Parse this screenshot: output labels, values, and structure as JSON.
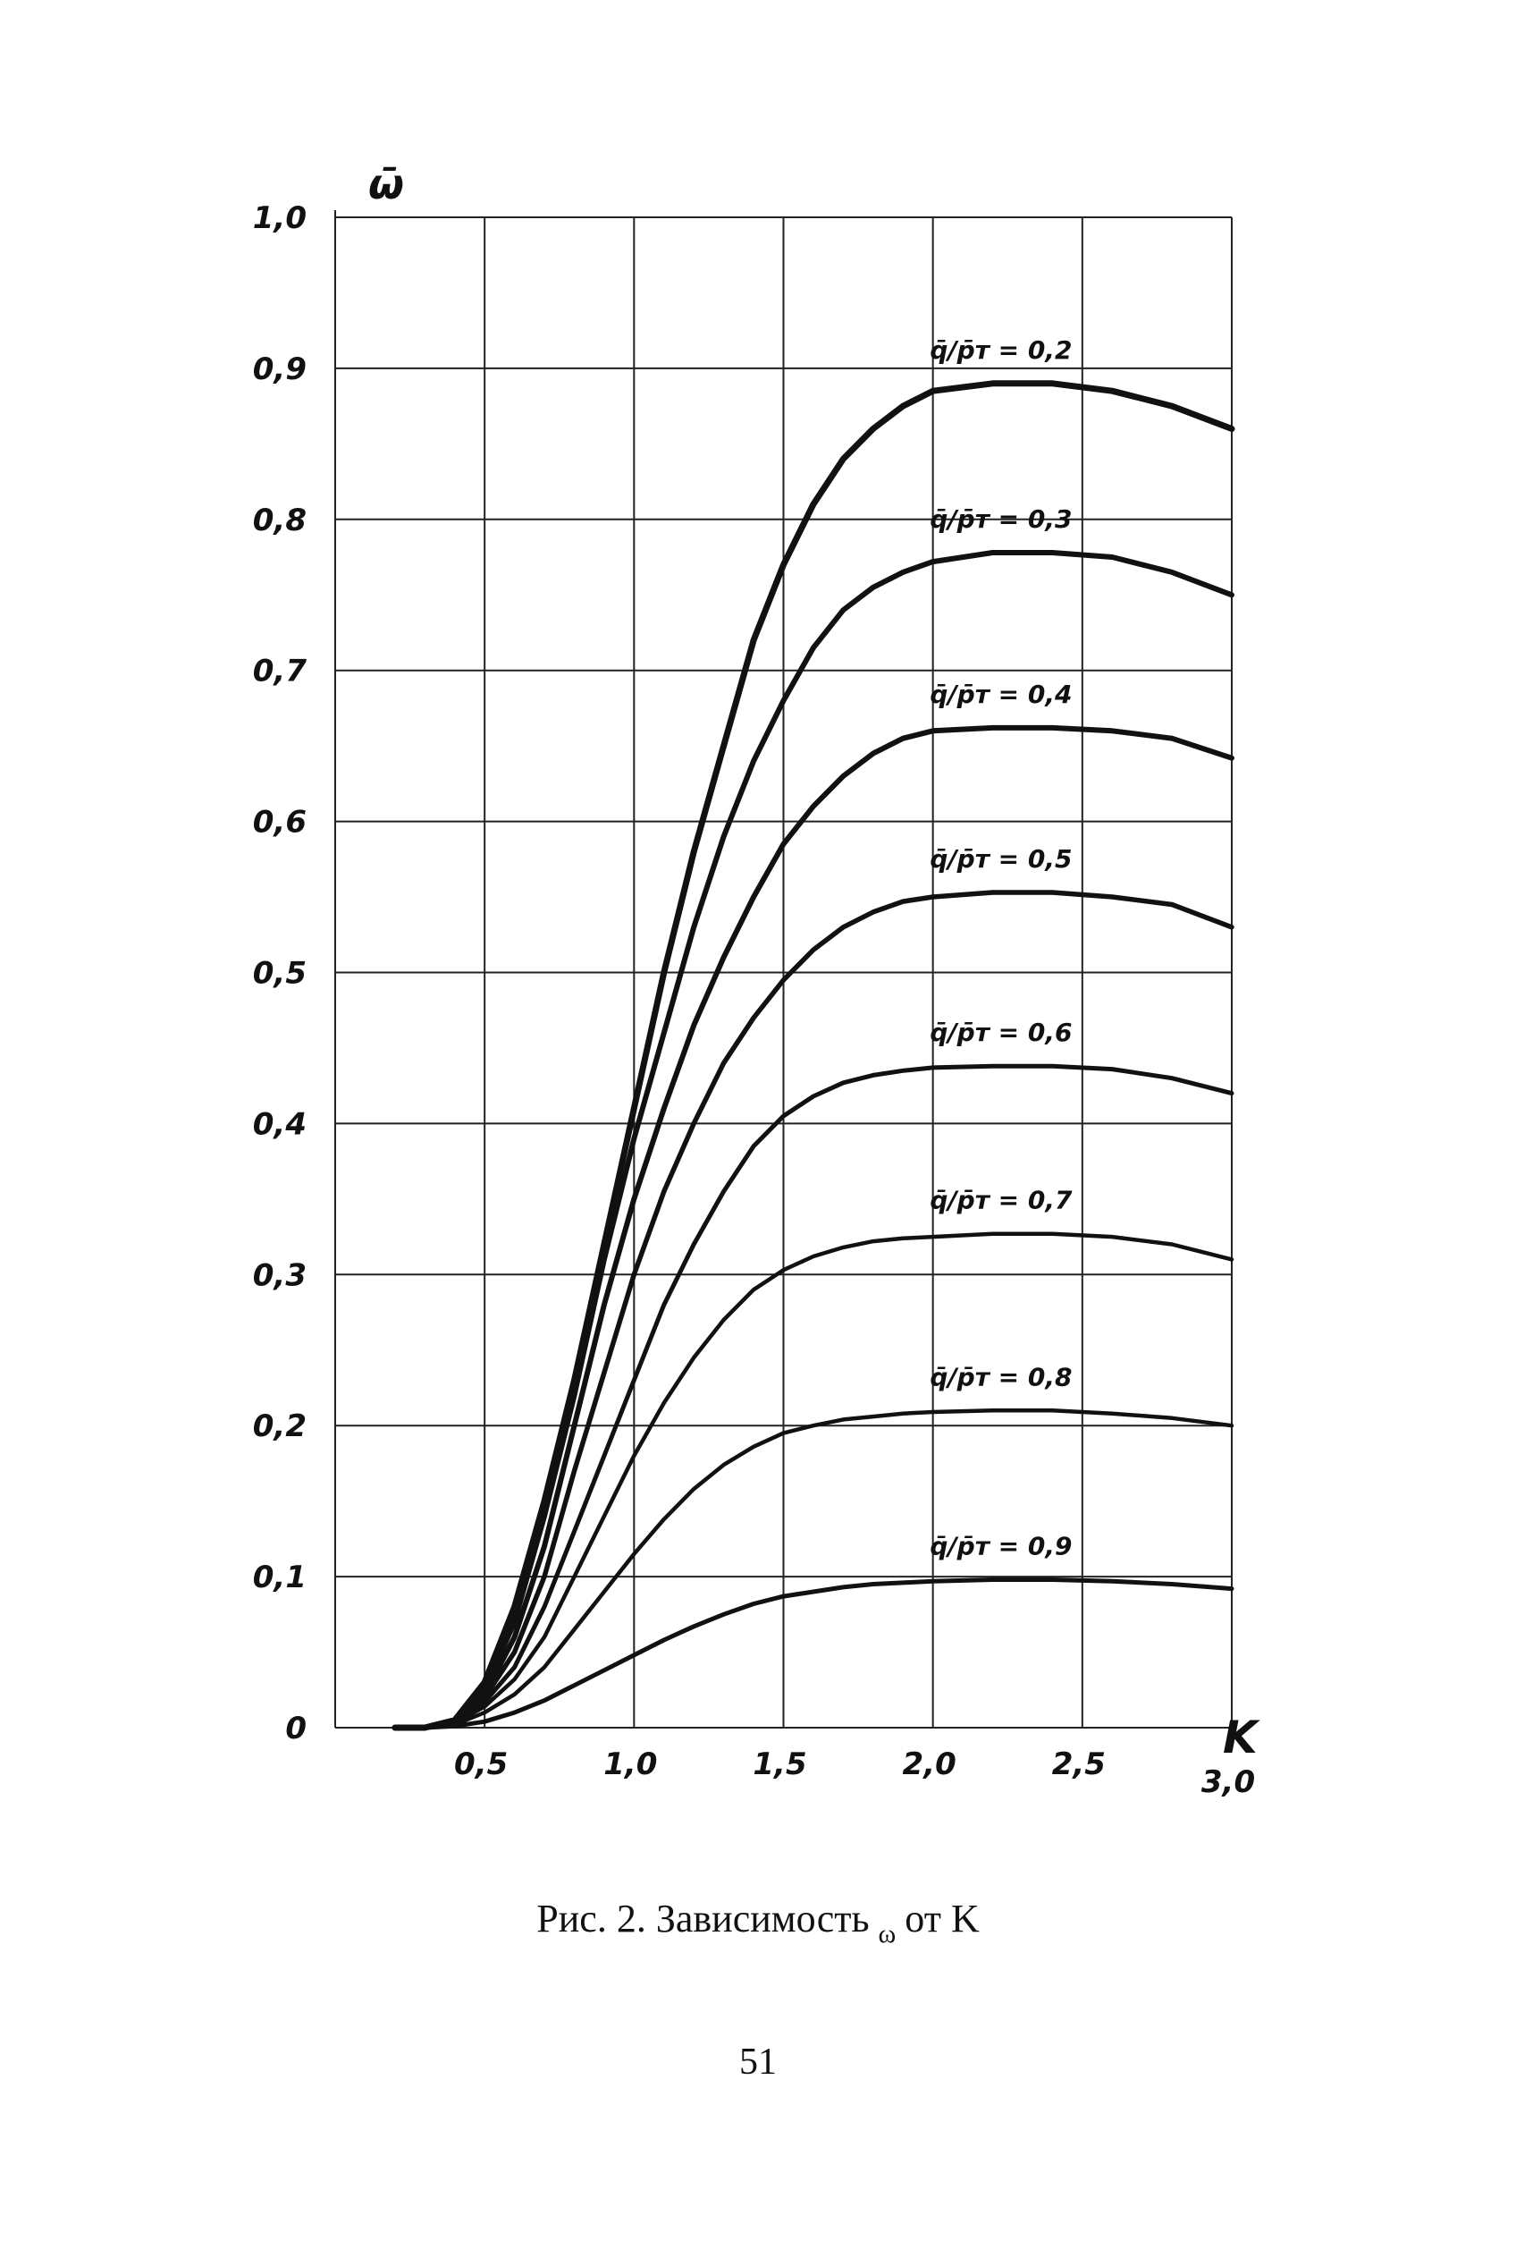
{
  "chart_data": {
    "type": "line",
    "xlabel": "K",
    "ylabel": "ω̄",
    "xlim": [
      0,
      3.0
    ],
    "ylim": [
      0,
      1.0
    ],
    "grid": true,
    "x_ticks": [
      {
        "v": 0.5,
        "label": "0,5"
      },
      {
        "v": 1.0,
        "label": "1,0"
      },
      {
        "v": 1.5,
        "label": "1,5"
      },
      {
        "v": 2.0,
        "label": "2,0"
      },
      {
        "v": 2.5,
        "label": "2,5"
      },
      {
        "v": 3.0,
        "label": "3,0"
      }
    ],
    "y_ticks": [
      {
        "v": 0,
        "label": "0"
      },
      {
        "v": 0.1,
        "label": "0,1"
      },
      {
        "v": 0.2,
        "label": "0,2"
      },
      {
        "v": 0.3,
        "label": "0,3"
      },
      {
        "v": 0.4,
        "label": "0,4"
      },
      {
        "v": 0.5,
        "label": "0,5"
      },
      {
        "v": 0.6,
        "label": "0,6"
      },
      {
        "v": 0.7,
        "label": "0,7"
      },
      {
        "v": 0.8,
        "label": "0,8"
      },
      {
        "v": 0.9,
        "label": "0,9"
      },
      {
        "v": 1.0,
        "label": "1,0"
      }
    ],
    "series": [
      {
        "name": "q̄/p̄т = 0,2",
        "x": [
          0.2,
          0.3,
          0.4,
          0.5,
          0.6,
          0.7,
          0.8,
          0.9,
          1.0,
          1.1,
          1.2,
          1.3,
          1.4,
          1.5,
          1.6,
          1.7,
          1.8,
          1.9,
          2.0,
          2.2,
          2.4,
          2.6,
          2.8,
          3.0
        ],
        "y": [
          0.0,
          0.0,
          0.005,
          0.03,
          0.08,
          0.15,
          0.23,
          0.32,
          0.41,
          0.5,
          0.58,
          0.65,
          0.72,
          0.77,
          0.81,
          0.84,
          0.86,
          0.875,
          0.885,
          0.89,
          0.89,
          0.885,
          0.875,
          0.86
        ]
      },
      {
        "name": "q̄/p̄т = 0,3",
        "x": [
          0.2,
          0.3,
          0.4,
          0.5,
          0.6,
          0.7,
          0.8,
          0.9,
          1.0,
          1.1,
          1.2,
          1.3,
          1.4,
          1.5,
          1.6,
          1.7,
          1.8,
          1.9,
          2.0,
          2.2,
          2.4,
          2.6,
          2.8,
          3.0
        ],
        "y": [
          0.0,
          0.0,
          0.005,
          0.025,
          0.07,
          0.14,
          0.22,
          0.31,
          0.39,
          0.46,
          0.53,
          0.59,
          0.64,
          0.68,
          0.715,
          0.74,
          0.755,
          0.765,
          0.772,
          0.778,
          0.778,
          0.775,
          0.765,
          0.75
        ]
      },
      {
        "name": "q̄/p̄т = 0,4",
        "x": [
          0.2,
          0.3,
          0.4,
          0.5,
          0.6,
          0.7,
          0.8,
          0.9,
          1.0,
          1.1,
          1.2,
          1.3,
          1.4,
          1.5,
          1.6,
          1.7,
          1.8,
          1.9,
          2.0,
          2.2,
          2.4,
          2.6,
          2.8,
          3.0
        ],
        "y": [
          0.0,
          0.0,
          0.004,
          0.022,
          0.06,
          0.12,
          0.2,
          0.28,
          0.35,
          0.41,
          0.465,
          0.51,
          0.55,
          0.585,
          0.61,
          0.63,
          0.645,
          0.655,
          0.66,
          0.662,
          0.662,
          0.66,
          0.655,
          0.642
        ]
      },
      {
        "name": "q̄/p̄т = 0,5",
        "x": [
          0.2,
          0.3,
          0.4,
          0.5,
          0.6,
          0.7,
          0.8,
          0.9,
          1.0,
          1.1,
          1.2,
          1.3,
          1.4,
          1.5,
          1.6,
          1.7,
          1.8,
          1.9,
          2.0,
          2.2,
          2.4,
          2.6,
          2.8,
          3.0
        ],
        "y": [
          0.0,
          0.0,
          0.004,
          0.02,
          0.05,
          0.1,
          0.17,
          0.235,
          0.3,
          0.355,
          0.4,
          0.44,
          0.47,
          0.495,
          0.515,
          0.53,
          0.54,
          0.547,
          0.55,
          0.553,
          0.553,
          0.55,
          0.545,
          0.53
        ]
      },
      {
        "name": "q̄/p̄т = 0,6",
        "x": [
          0.2,
          0.3,
          0.4,
          0.5,
          0.6,
          0.7,
          0.8,
          0.9,
          1.0,
          1.1,
          1.2,
          1.3,
          1.4,
          1.5,
          1.6,
          1.7,
          1.8,
          1.9,
          2.0,
          2.2,
          2.4,
          2.6,
          2.8,
          3.0
        ],
        "y": [
          0.0,
          0.0,
          0.003,
          0.017,
          0.04,
          0.08,
          0.13,
          0.18,
          0.23,
          0.28,
          0.32,
          0.355,
          0.385,
          0.405,
          0.418,
          0.427,
          0.432,
          0.435,
          0.437,
          0.438,
          0.438,
          0.436,
          0.43,
          0.42
        ]
      },
      {
        "name": "q̄/p̄т = 0,7",
        "x": [
          0.2,
          0.3,
          0.4,
          0.5,
          0.6,
          0.7,
          0.8,
          0.9,
          1.0,
          1.1,
          1.2,
          1.3,
          1.4,
          1.5,
          1.6,
          1.7,
          1.8,
          1.9,
          2.0,
          2.2,
          2.4,
          2.6,
          2.8,
          3.0
        ],
        "y": [
          0.0,
          0.0,
          0.003,
          0.014,
          0.032,
          0.06,
          0.1,
          0.14,
          0.18,
          0.215,
          0.245,
          0.27,
          0.29,
          0.303,
          0.312,
          0.318,
          0.322,
          0.324,
          0.325,
          0.327,
          0.327,
          0.325,
          0.32,
          0.31
        ]
      },
      {
        "name": "q̄/p̄т = 0,8",
        "x": [
          0.2,
          0.3,
          0.4,
          0.5,
          0.6,
          0.7,
          0.8,
          0.9,
          1.0,
          1.1,
          1.2,
          1.3,
          1.4,
          1.5,
          1.6,
          1.7,
          1.8,
          1.9,
          2.0,
          2.2,
          2.4,
          2.6,
          2.8,
          3.0
        ],
        "y": [
          0.0,
          0.0,
          0.002,
          0.01,
          0.022,
          0.04,
          0.065,
          0.09,
          0.115,
          0.138,
          0.158,
          0.174,
          0.186,
          0.195,
          0.2,
          0.204,
          0.206,
          0.208,
          0.209,
          0.21,
          0.21,
          0.208,
          0.205,
          0.2
        ]
      },
      {
        "name": "q̄/p̄т = 0,9",
        "x": [
          0.2,
          0.3,
          0.4,
          0.5,
          0.6,
          0.7,
          0.8,
          0.9,
          1.0,
          1.1,
          1.2,
          1.3,
          1.4,
          1.5,
          1.6,
          1.7,
          1.8,
          1.9,
          2.0,
          2.2,
          2.4,
          2.6,
          2.8,
          3.0
        ],
        "y": [
          0.0,
          0.0,
          0.001,
          0.004,
          0.01,
          0.018,
          0.028,
          0.038,
          0.048,
          0.058,
          0.067,
          0.075,
          0.082,
          0.087,
          0.09,
          0.093,
          0.095,
          0.096,
          0.097,
          0.098,
          0.098,
          0.097,
          0.095,
          0.092
        ]
      }
    ]
  },
  "caption": {
    "prefix": "Рис. 2. Зависимость",
    "symbol": "ω",
    "suffix": "от K"
  },
  "page_number": "51"
}
